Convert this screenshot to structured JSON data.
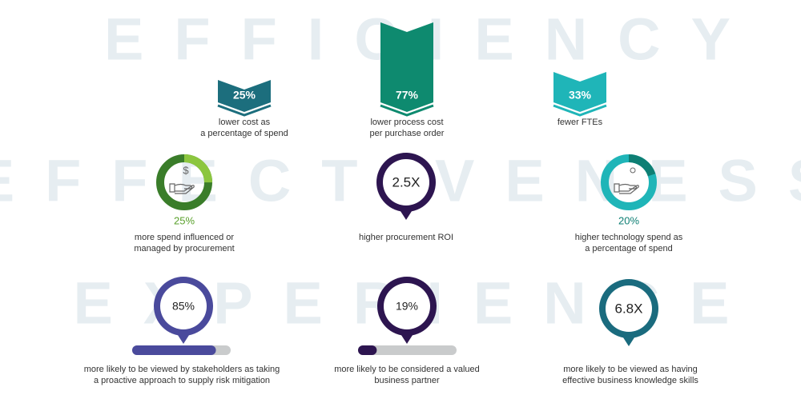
{
  "background_words": [
    "EFFICIENCY",
    "EFFECTIVENESS",
    "EXPERIENCE"
  ],
  "efficiency": [
    {
      "value_label": "25%",
      "caption": [
        "lower cost as",
        "a percentage of spend"
      ]
    },
    {
      "value_label": "77%",
      "caption": [
        "lower process cost",
        "per purchase order"
      ]
    },
    {
      "value_label": "33%",
      "caption": [
        "fewer FTEs"
      ]
    }
  ],
  "effectiveness": [
    {
      "value": 25,
      "value_label": "25%",
      "caption": [
        "more spend influenced or",
        "managed by procurement"
      ]
    },
    {
      "value_label": "2.5X",
      "caption": [
        "higher procurement ROI"
      ]
    },
    {
      "value": 20,
      "value_label": "20%",
      "caption": [
        "higher technology spend as",
        "a percentage of spend"
      ]
    }
  ],
  "experience": [
    {
      "value": 85,
      "value_label": "85%",
      "caption": [
        "more likely to be viewed by stakeholders as taking",
        "a proactive approach to supply risk mitigation"
      ]
    },
    {
      "value": 19,
      "value_label": "19%",
      "caption": [
        "more likely to be considered a valued",
        "business partner"
      ]
    },
    {
      "value_label": "6.8X",
      "caption": [
        "more likely to be viewed as having",
        "effective business knowledge skills"
      ]
    }
  ]
}
